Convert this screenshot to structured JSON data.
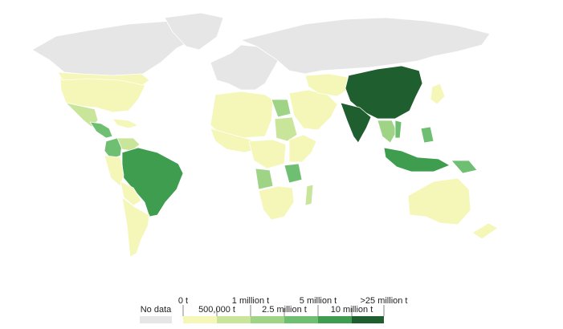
{
  "colors": {
    "no_data": "#e6e6e6",
    "bin_0": "#f5f7b8",
    "bin_1": "#c9e59a",
    "bin_2": "#9fd486",
    "bin_3": "#6fbf72",
    "bin_4": "#3f9d50",
    "bin_5": "#1f5e2e",
    "border": "#ffffff"
  },
  "legend": {
    "no_data_label": "No data",
    "upper_labels": [
      "0 t",
      "1 million t",
      "5 million t",
      ">25 million t"
    ],
    "lower_labels": [
      "500,000 t",
      "2.5 million t",
      "10 million t"
    ]
  },
  "regions": [
    {
      "name": "North America",
      "level": "no_data"
    },
    {
      "name": "Greenland",
      "level": "no_data"
    },
    {
      "name": "USA",
      "level": "bin_0"
    },
    {
      "name": "Canada south",
      "level": "bin_0"
    },
    {
      "name": "Mexico",
      "level": "bin_1"
    },
    {
      "name": "Central America",
      "level": "bin_3"
    },
    {
      "name": "Caribbean",
      "level": "bin_0"
    },
    {
      "name": "Colombia",
      "level": "bin_3"
    },
    {
      "name": "Venezuela",
      "level": "bin_1"
    },
    {
      "name": "Brazil",
      "level": "bin_4"
    },
    {
      "name": "Peru",
      "level": "bin_0"
    },
    {
      "name": "Bolivia",
      "level": "bin_0"
    },
    {
      "name": "Southern Cone",
      "level": "bin_0"
    },
    {
      "name": "Europe",
      "level": "no_data"
    },
    {
      "name": "Russia",
      "level": "no_data"
    },
    {
      "name": "North Africa",
      "level": "bin_0"
    },
    {
      "name": "Egypt",
      "level": "bin_2"
    },
    {
      "name": "Sudan",
      "level": "bin_1"
    },
    {
      "name": "West Africa",
      "level": "bin_0"
    },
    {
      "name": "Central Africa",
      "level": "bin_0"
    },
    {
      "name": "Angola",
      "level": "bin_2"
    },
    {
      "name": "Tanzania",
      "level": "bin_3"
    },
    {
      "name": "East Africa",
      "level": "bin_0"
    },
    {
      "name": "Southern Africa",
      "level": "bin_0"
    },
    {
      "name": "Madagascar",
      "level": "bin_1"
    },
    {
      "name": "Middle East",
      "level": "bin_0"
    },
    {
      "name": "Central Asia",
      "level": "bin_0"
    },
    {
      "name": "China",
      "level": "bin_5"
    },
    {
      "name": "India",
      "level": "bin_5"
    },
    {
      "name": "Southeast Asia mainland",
      "level": "bin_2"
    },
    {
      "name": "Vietnam",
      "level": "bin_3"
    },
    {
      "name": "Philippines",
      "level": "bin_3"
    },
    {
      "name": "Indonesia",
      "level": "bin_4"
    },
    {
      "name": "Papua New Guinea",
      "level": "bin_3"
    },
    {
      "name": "Japan",
      "level": "bin_0"
    },
    {
      "name": "Australia",
      "level": "bin_0"
    },
    {
      "name": "New Zealand",
      "level": "bin_0"
    }
  ]
}
